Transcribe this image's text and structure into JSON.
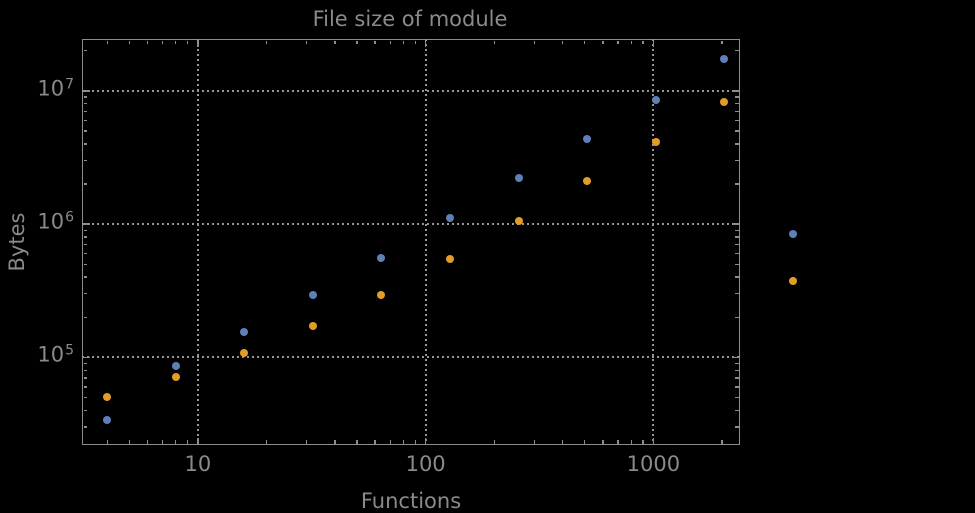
{
  "chart_data": {
    "type": "scatter",
    "title": "File size of module",
    "xlabel": "Functions",
    "ylabel": "Bytes",
    "xscale": "log",
    "yscale": "log",
    "xlim": [
      3.1,
      2400
    ],
    "ylim": [
      22000,
      24500000
    ],
    "grid": "dotted gray gridlines at major decades",
    "legend_position": "none",
    "frame_color": "#8c8c8c",
    "grid_color": "#969696",
    "text_color": "#8a8a8a",
    "background_color": "#000000",
    "x_major_ticks": [
      {
        "value": 10,
        "label": "10"
      },
      {
        "value": 100,
        "label": "100"
      },
      {
        "value": 1000,
        "label": "1000"
      }
    ],
    "y_major_ticks": [
      {
        "value": 100000,
        "base": "10",
        "exponent": "5"
      },
      {
        "value": 1000000,
        "base": "10",
        "exponent": "6"
      },
      {
        "value": 10000000,
        "base": "10",
        "exponent": "7"
      }
    ],
    "series": [
      {
        "name": "blue-series",
        "color": "#5e81b5",
        "x": [
          4,
          8,
          16,
          32,
          64,
          128,
          256,
          512,
          1024,
          2048,
          4096
        ],
        "y": [
          34000,
          86000,
          154000,
          293000,
          560000,
          1110000,
          2210000,
          4360000,
          8560000,
          17200000,
          850000
        ]
      },
      {
        "name": "orange-series",
        "color": "#e39c26",
        "x": [
          4,
          8,
          16,
          32,
          64,
          128,
          256,
          512,
          1024,
          2048,
          4096
        ],
        "y": [
          50000,
          71000,
          107000,
          171000,
          295000,
          546000,
          1050000,
          2090000,
          4110000,
          8220000,
          375000
        ]
      }
    ]
  }
}
